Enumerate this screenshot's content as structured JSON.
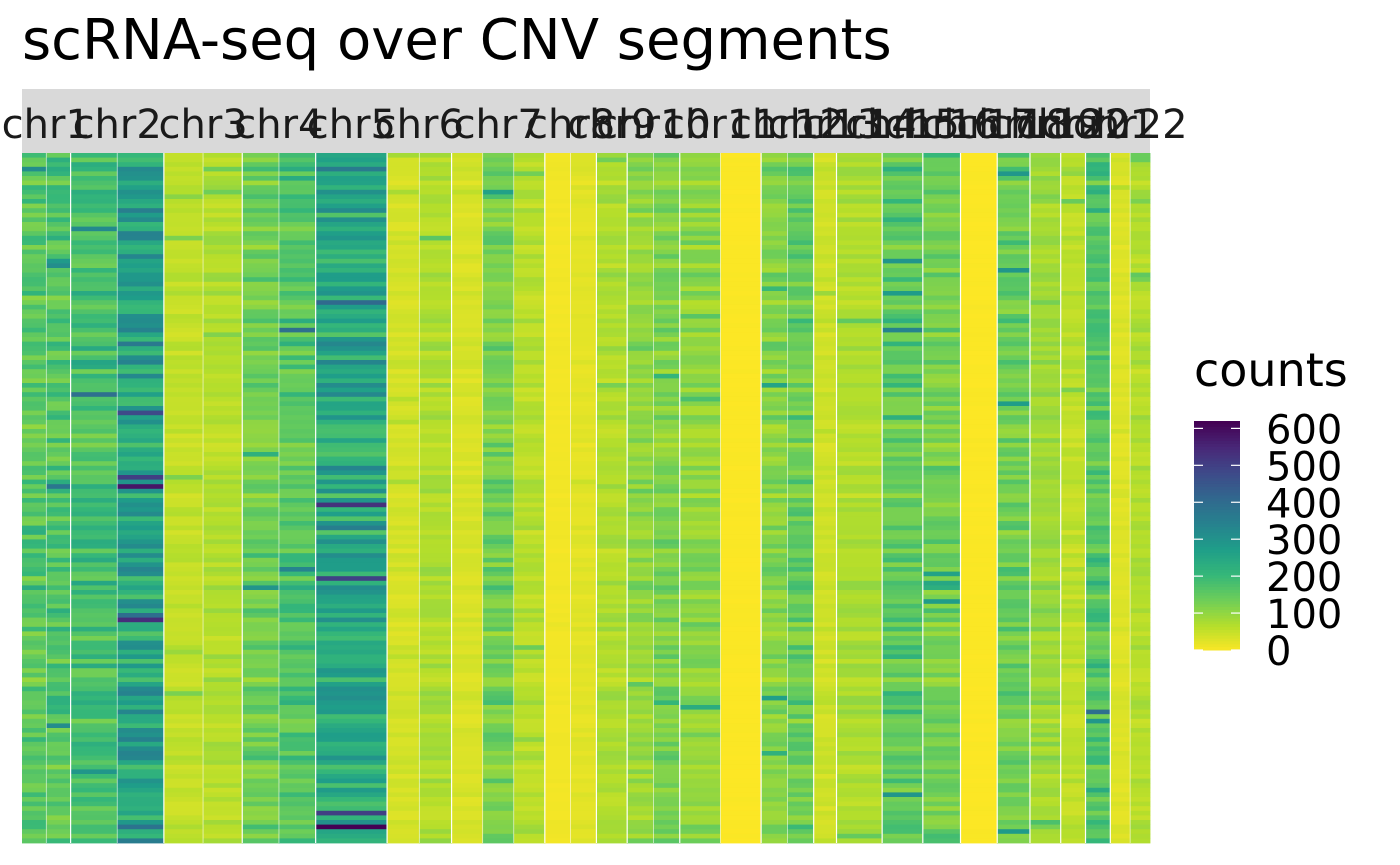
{
  "chart_data": {
    "type": "heatmap",
    "title": "scRNA-seq over CNV segments",
    "facet_labels": [
      "chr1",
      "chr2",
      "chr3",
      "chr4",
      "chr5",
      "chr6",
      "chr7",
      "chr8",
      "chr9",
      "chr10",
      "chr11",
      "chr12",
      "chr13",
      "chr14",
      "chr15",
      "chr16",
      "chr17",
      "chr18",
      "chr19",
      "chr20",
      "chr21",
      "chr22"
    ],
    "segments": [
      {
        "chr": "chr1",
        "mean_counts": [
          160,
          165
        ]
      },
      {
        "chr": "chr2",
        "mean_counts": [
          185,
          260
        ]
      },
      {
        "chr": "chr3",
        "mean_counts": [
          55,
          70
        ]
      },
      {
        "chr": "chr4",
        "mean_counts": [
          135,
          160
        ]
      },
      {
        "chr": "chr5",
        "mean_counts": [
          245
        ]
      },
      {
        "chr": "chr6",
        "mean_counts": [
          40,
          75
        ]
      },
      {
        "chr": "chr7",
        "mean_counts": [
          35,
          130,
          65
        ]
      },
      {
        "chr": "chr8",
        "mean_counts": [
          10,
          25
        ]
      },
      {
        "chr": "chr9",
        "mean_counts": [
          75
        ]
      },
      {
        "chr": "chr10",
        "mean_counts": [
          100,
          120
        ]
      },
      {
        "chr": "chr11",
        "mean_counts": [
          105,
          0
        ]
      },
      {
        "chr": "chr12",
        "mean_counts": [
          115,
          140
        ]
      },
      {
        "chr": "chr13",
        "mean_counts": [
          45
        ]
      },
      {
        "chr": "chr14",
        "mean_counts": [
          75
        ]
      },
      {
        "chr": "chr15",
        "mean_counts": [
          155
        ]
      },
      {
        "chr": "chr16",
        "mean_counts": [
          130
        ]
      },
      {
        "chr": "chr17",
        "mean_counts": [
          0
        ]
      },
      {
        "chr": "chr18",
        "mean_counts": [
          140
        ]
      },
      {
        "chr": "chr19",
        "mean_counts": [
          90
        ]
      },
      {
        "chr": "chr20",
        "mean_counts": [
          60
        ]
      },
      {
        "chr": "chr21",
        "mean_counts": [
          170
        ]
      },
      {
        "chr": "chr22",
        "mean_counts": [
          30,
          70
        ]
      }
    ],
    "legend": {
      "title": "counts",
      "ticks": [
        0,
        100,
        200,
        300,
        400,
        500,
        600
      ],
      "range": [
        0,
        620
      ],
      "palette": "viridis"
    },
    "colors": {
      "strip_bg": "#d9d9d9",
      "separator": "#ffffff"
    }
  }
}
